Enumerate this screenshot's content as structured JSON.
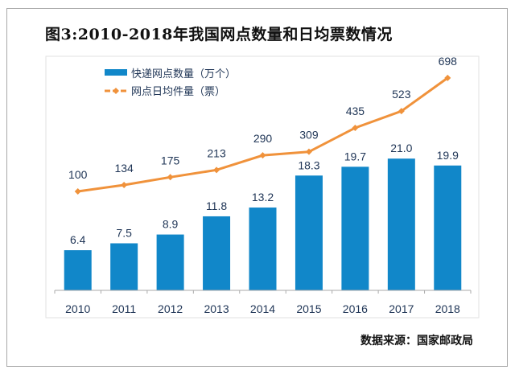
{
  "title": "图3:2010-2018年我国网点数量和日均票数情况",
  "source": "数据来源：国家邮政局",
  "chart_data": {
    "type": "bar+line",
    "categories": [
      "2010",
      "2011",
      "2012",
      "2013",
      "2014",
      "2015",
      "2016",
      "2017",
      "2018"
    ],
    "series": [
      {
        "name": "快递网点数量（万个）",
        "type": "bar",
        "color": "#1187c9",
        "values": [
          6.4,
          7.5,
          8.9,
          11.8,
          13.2,
          18.3,
          19.7,
          21.0,
          19.9
        ]
      },
      {
        "name": "网点日均件量（票）",
        "type": "line",
        "color": "#f0923b",
        "values": [
          100,
          134,
          175,
          213,
          290,
          309,
          435,
          523,
          698
        ]
      }
    ],
    "legend": "top-left",
    "grid": false,
    "data_labels": true
  }
}
